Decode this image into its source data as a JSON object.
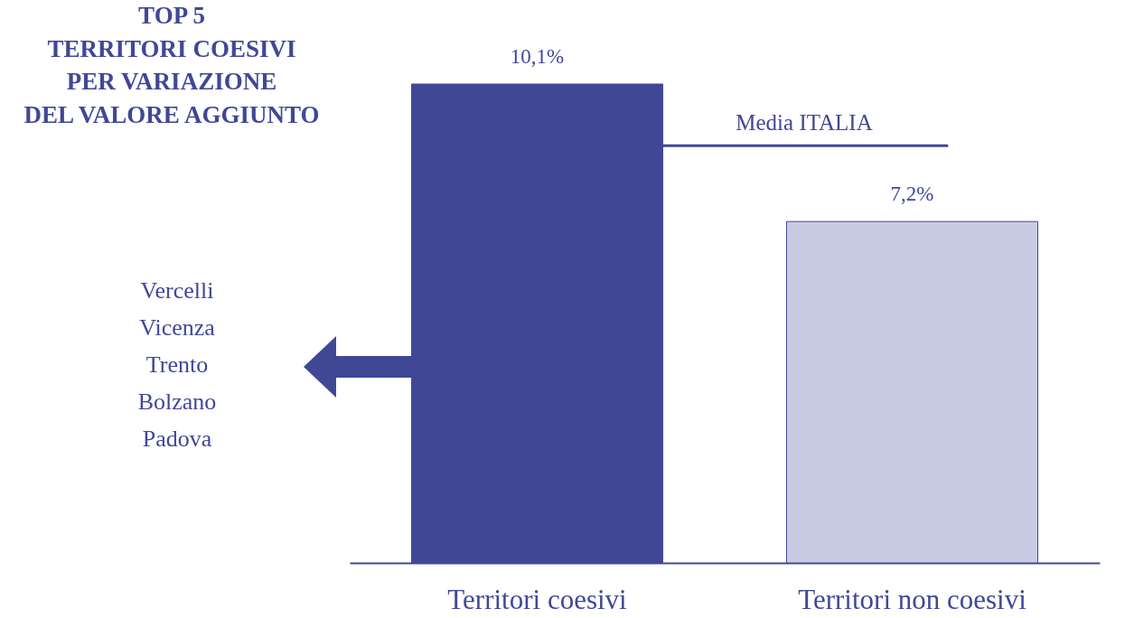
{
  "chart_data": {
    "type": "bar",
    "title": "TOP 5\nTERRITORI COESIVI\nPER VARIAZIONE\nDEL VALORE AGGIUNTO",
    "categories": [
      "Territori coesivi",
      "Territori non coesivi"
    ],
    "values": [
      10.1,
      7.2
    ],
    "colors": [
      "#404896",
      "#c9cbe4"
    ],
    "value_labels": [
      "10,1%",
      "7,2%"
    ],
    "tick_labels": "x",
    "ref_lines": [
      {
        "axis": "y",
        "value": 8.8,
        "label": "Media ITALIA",
        "color": "#404896"
      }
    ],
    "annotations": [
      "Vercelli",
      "Vicenza",
      "Trento",
      "Bolzano",
      "Padova"
    ]
  }
}
